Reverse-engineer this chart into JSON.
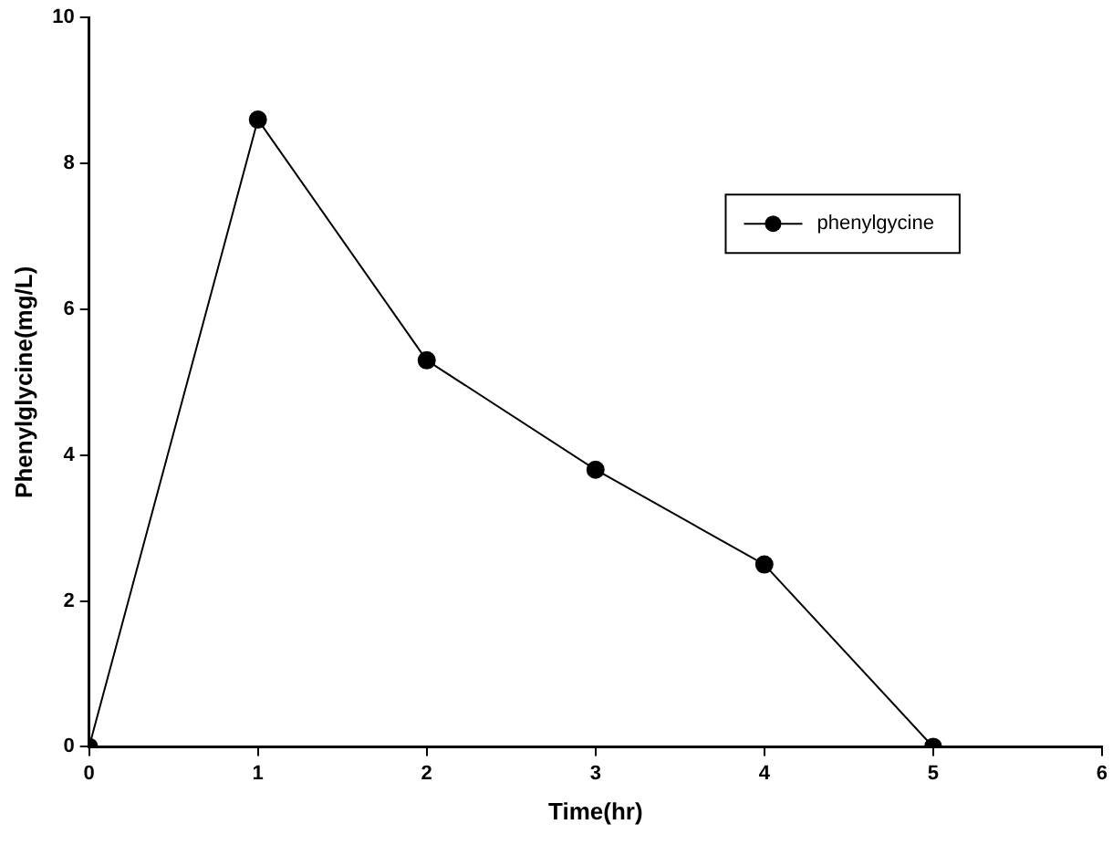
{
  "chart_data": {
    "type": "line",
    "xlabel": "Time(hr)",
    "ylabel": "Phenylglycine(mg/L)",
    "x": [
      0,
      1,
      2,
      3,
      4,
      5
    ],
    "series": [
      {
        "name": "phenylgycine",
        "color": "#000000",
        "values": [
          0,
          8.6,
          5.3,
          3.8,
          2.5,
          0
        ]
      }
    ],
    "xlim": [
      0,
      6
    ],
    "xticks": [
      0,
      1,
      2,
      3,
      4,
      5,
      6
    ],
    "ylim": [
      0,
      10
    ],
    "yticks": [
      0,
      2,
      4,
      6,
      8,
      10
    ],
    "grid": false,
    "legend": "top right",
    "marker": "circle",
    "line_style": "solid"
  }
}
